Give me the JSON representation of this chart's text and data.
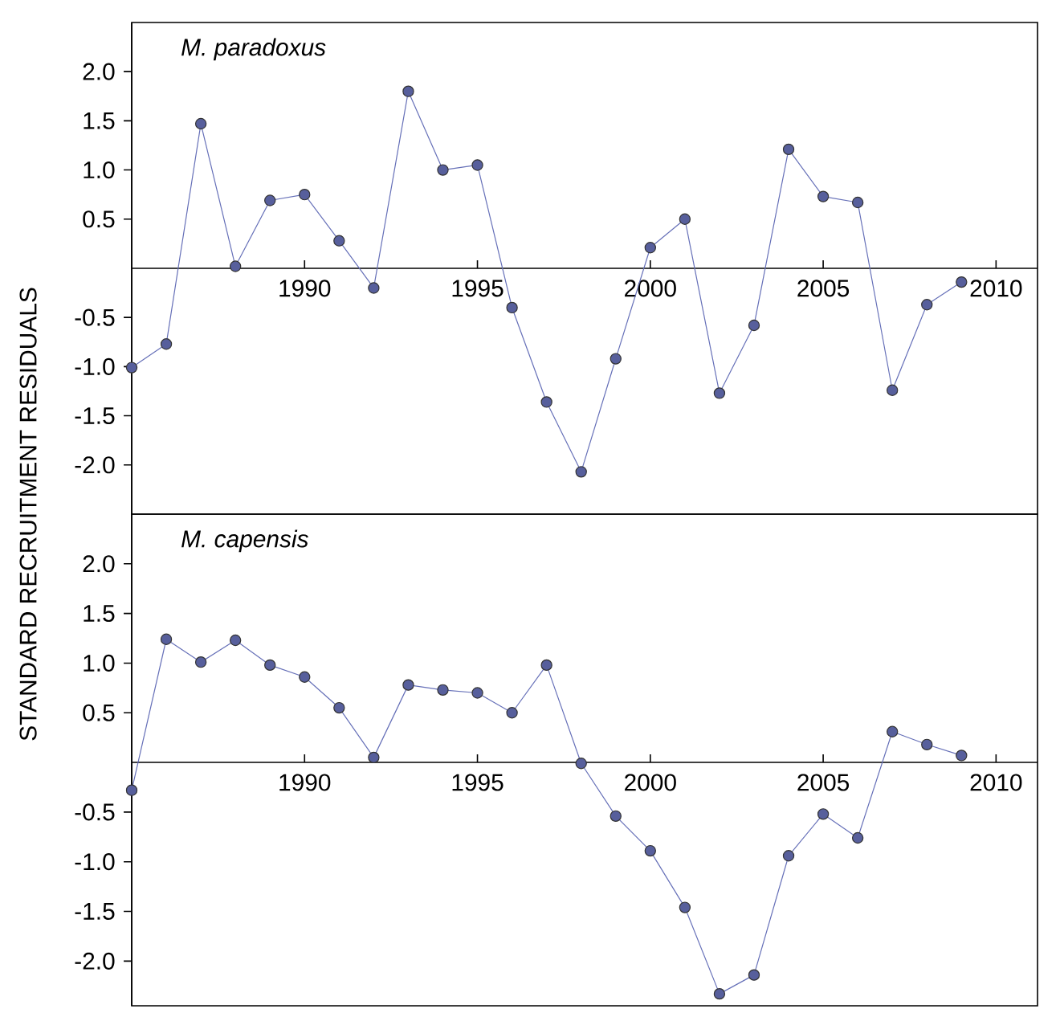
{
  "chart_data": [
    {
      "type": "line",
      "title": "M. paradoxus",
      "ylabel": "STANDARD RECRUITMENT RESIDUALS",
      "marker": "circle",
      "grid": false,
      "x": [
        1985,
        1986,
        1987,
        1988,
        1989,
        1990,
        1991,
        1992,
        1993,
        1994,
        1995,
        1996,
        1997,
        1998,
        1999,
        2000,
        2001,
        2002,
        2003,
        2004,
        2005,
        2006,
        2007,
        2008,
        2009
      ],
      "series": [
        {
          "color": "#6670b8",
          "values": [
            -1.01,
            -0.77,
            1.47,
            0.02,
            0.69,
            0.75,
            0.28,
            -0.2,
            1.8,
            1.0,
            1.05,
            -0.4,
            -1.36,
            -2.07,
            -0.92,
            0.21,
            0.5,
            -1.27,
            -0.58,
            1.21,
            0.73,
            0.67,
            -1.24,
            -0.37,
            -0.14
          ]
        }
      ],
      "xlim": [
        1985,
        2011.2
      ],
      "ylim": [
        -2.5,
        2.5
      ],
      "xticks": [
        1990,
        1995,
        2000,
        2005,
        2010
      ],
      "yticks": [
        {
          "value": -2,
          "label": "-2.0"
        },
        {
          "value": -1.5,
          "label": "-1.5"
        },
        {
          "value": -1,
          "label": "-1.0"
        },
        {
          "value": -0.5,
          "label": "-0.5"
        },
        {
          "value": 0.5,
          "label": "0.5"
        },
        {
          "value": 1,
          "label": "1.0"
        },
        {
          "value": 1.5,
          "label": "1.5"
        },
        {
          "value": 2,
          "label": "2.0"
        }
      ]
    },
    {
      "type": "line",
      "title": "M. capensis",
      "marker": "circle",
      "grid": false,
      "x": [
        1985,
        1986,
        1987,
        1988,
        1989,
        1990,
        1991,
        1992,
        1993,
        1994,
        1995,
        1996,
        1997,
        1998,
        1999,
        2000,
        2001,
        2002,
        2003,
        2004,
        2005,
        2006,
        2007,
        2008,
        2009
      ],
      "series": [
        {
          "color": "#6670b8",
          "values": [
            -0.28,
            1.24,
            1.01,
            1.23,
            0.98,
            0.86,
            0.55,
            0.05,
            0.78,
            0.73,
            0.7,
            0.5,
            0.98,
            -0.01,
            -0.54,
            -0.89,
            -1.46,
            -2.33,
            -2.14,
            -0.94,
            -0.52,
            -0.76,
            0.31,
            0.18,
            0.07
          ]
        }
      ],
      "xlim": [
        1985,
        2011.2
      ],
      "ylim": [
        -2.45,
        2.5
      ],
      "xticks": [
        1990,
        1995,
        2000,
        2005,
        2010
      ],
      "yticks": [
        {
          "value": -2,
          "label": "-2.0"
        },
        {
          "value": -1.5,
          "label": "-1.5"
        },
        {
          "value": -1,
          "label": "-1.0"
        },
        {
          "value": -0.5,
          "label": "-0.5"
        },
        {
          "value": 0.5,
          "label": "0.5"
        },
        {
          "value": 1,
          "label": "1.0"
        },
        {
          "value": 1.5,
          "label": "1.5"
        },
        {
          "value": 2,
          "label": "2.0"
        }
      ]
    }
  ]
}
